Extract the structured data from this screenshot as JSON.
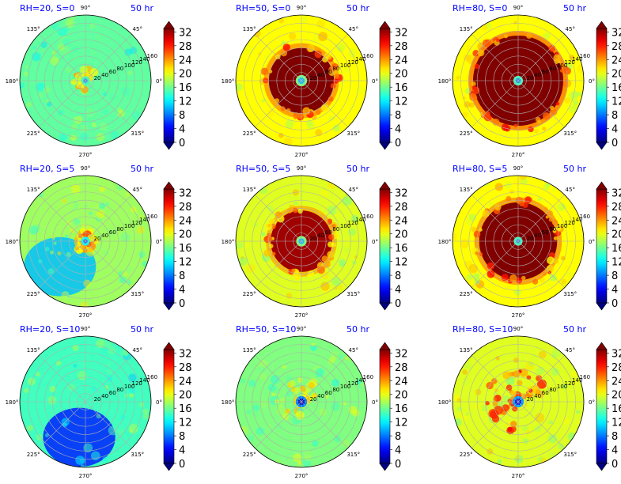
{
  "figure": {
    "panels": [
      {
        "title": "RH=20, S=0",
        "time": "50 hr"
      },
      {
        "title": "RH=50, S=0",
        "time": "50 hr"
      },
      {
        "title": "RH=80, S=0",
        "time": "50 hr"
      },
      {
        "title": "RH=20, S=5",
        "time": "50 hr"
      },
      {
        "title": "RH=50, S=5",
        "time": "50 hr"
      },
      {
        "title": "RH=80, S=5",
        "time": "50 hr"
      },
      {
        "title": "RH=20, S=10",
        "time": "50 hr"
      },
      {
        "title": "RH=50, S=10",
        "time": "50 hr"
      },
      {
        "title": "RH=80, S=10",
        "time": "50 hr"
      }
    ],
    "angle_labels": [
      "0°",
      "45°",
      "90°",
      "135°",
      "180°",
      "225°",
      "270°",
      "315°"
    ],
    "radial_labels": [
      "20",
      "40",
      "60",
      "80",
      "100",
      "120",
      "140",
      "160"
    ],
    "colorbar_ticks": [
      "0",
      "4",
      "8",
      "12",
      "16",
      "20",
      "24",
      "28",
      "32"
    ],
    "title_color": "#0000ff"
  },
  "chart_data": [
    {
      "type": "heatmap",
      "projection": "polar",
      "title": "RH=20, S=0",
      "annotation": "50 hr",
      "rlim": [
        0,
        160
      ],
      "theta_ticks_deg": [
        0,
        45,
        90,
        135,
        180,
        225,
        270,
        315
      ],
      "r_ticks": [
        20,
        40,
        60,
        80,
        100,
        120,
        140,
        160
      ],
      "colorbar": {
        "cmap": "jet",
        "range": [
          0,
          32
        ],
        "ticks": [
          0,
          4,
          8,
          12,
          16,
          20,
          24,
          28,
          32
        ],
        "extend": "both"
      },
      "field": {
        "background": 15,
        "core_radius": 5,
        "core_value": 8,
        "ring_inner": 7,
        "ring_outer": 30,
        "ring_value": 24,
        "ring_coverage": 0.35
      }
    },
    {
      "type": "heatmap",
      "projection": "polar",
      "title": "RH=50, S=0",
      "annotation": "50 hr",
      "rlim": [
        0,
        160
      ],
      "theta_ticks_deg": [
        0,
        45,
        90,
        135,
        180,
        225,
        270,
        315
      ],
      "r_ticks": [
        20,
        40,
        60,
        80,
        100,
        120,
        140,
        160
      ],
      "colorbar": {
        "cmap": "jet",
        "range": [
          0,
          32
        ],
        "ticks": [
          0,
          4,
          8,
          12,
          16,
          20,
          24,
          28,
          32
        ],
        "extend": "both"
      },
      "field": {
        "background": 20,
        "core_radius": 8,
        "core_value": 10,
        "ring_inner": 10,
        "ring_outer": 80,
        "ring_value": 32,
        "ring_coverage": 1.0
      }
    },
    {
      "type": "heatmap",
      "projection": "polar",
      "title": "RH=80, S=0",
      "annotation": "50 hr",
      "rlim": [
        0,
        160
      ],
      "theta_ticks_deg": [
        0,
        45,
        90,
        135,
        180,
        225,
        270,
        315
      ],
      "r_ticks": [
        20,
        40,
        60,
        80,
        100,
        120,
        140,
        160
      ],
      "colorbar": {
        "cmap": "jet",
        "range": [
          0,
          32
        ],
        "ticks": [
          0,
          4,
          8,
          12,
          16,
          20,
          24,
          28,
          32
        ],
        "extend": "both"
      },
      "field": {
        "background": 20,
        "core_radius": 6,
        "core_value": 8,
        "ring_inner": 8,
        "ring_outer": 110,
        "ring_value": 33,
        "ring_coverage": 1.0
      }
    },
    {
      "type": "heatmap",
      "projection": "polar",
      "title": "RH=20, S=5",
      "annotation": "50 hr",
      "rlim": [
        0,
        160
      ],
      "theta_ticks_deg": [
        0,
        45,
        90,
        135,
        180,
        225,
        270,
        315
      ],
      "r_ticks": [
        20,
        40,
        60,
        80,
        100,
        120,
        140,
        160
      ],
      "colorbar": {
        "cmap": "jet",
        "range": [
          0,
          32
        ],
        "ticks": [
          0,
          4,
          8,
          12,
          16,
          20,
          24,
          28,
          32
        ],
        "extend": "both"
      },
      "field": {
        "background": 17,
        "core_radius": 5,
        "core_value": 6,
        "ring_inner": 6,
        "ring_outer": 16,
        "ring_value": 30,
        "ring_coverage": 1.0,
        "low_sector": {
          "center_deg": 225,
          "value": 10
        }
      }
    },
    {
      "type": "heatmap",
      "projection": "polar",
      "title": "RH=50, S=5",
      "annotation": "50 hr",
      "rlim": [
        0,
        160
      ],
      "theta_ticks_deg": [
        0,
        45,
        90,
        135,
        180,
        225,
        270,
        315
      ],
      "r_ticks": [
        20,
        40,
        60,
        80,
        100,
        120,
        140,
        160
      ],
      "colorbar": {
        "cmap": "jet",
        "range": [
          0,
          32
        ],
        "ticks": [
          0,
          4,
          8,
          12,
          16,
          20,
          24,
          28,
          32
        ],
        "extend": "both"
      },
      "field": {
        "background": 19,
        "core_radius": 7,
        "core_value": 10,
        "ring_inner": 9,
        "ring_outer": 75,
        "ring_value": 31,
        "ring_coverage": 1.0
      }
    },
    {
      "type": "heatmap",
      "projection": "polar",
      "title": "RH=80, S=5",
      "annotation": "50 hr",
      "rlim": [
        0,
        160
      ],
      "theta_ticks_deg": [
        0,
        45,
        90,
        135,
        180,
        225,
        270,
        315
      ],
      "r_ticks": [
        20,
        40,
        60,
        80,
        100,
        120,
        140,
        160
      ],
      "colorbar": {
        "cmap": "jet",
        "range": [
          0,
          32
        ],
        "ticks": [
          0,
          4,
          8,
          12,
          16,
          20,
          24,
          28,
          32
        ],
        "extend": "both"
      },
      "field": {
        "background": 20,
        "core_radius": 5,
        "core_value": 8,
        "ring_inner": 7,
        "ring_outer": 95,
        "ring_value": 32,
        "ring_coverage": 1.0
      }
    },
    {
      "type": "heatmap",
      "projection": "polar",
      "title": "RH=20, S=10",
      "annotation": "50 hr",
      "rlim": [
        0,
        160
      ],
      "theta_ticks_deg": [
        0,
        45,
        90,
        135,
        180,
        225,
        270,
        315
      ],
      "r_ticks": [
        20,
        40,
        60,
        80,
        100,
        120,
        140,
        160
      ],
      "colorbar": {
        "cmap": "jet",
        "range": [
          0,
          32
        ],
        "ticks": [
          0,
          4,
          8,
          12,
          16,
          20,
          24,
          28,
          32
        ],
        "extend": "both"
      },
      "field": {
        "background": 14,
        "core_radius": 0,
        "core_value": 14,
        "ring_inner": 0,
        "ring_outer": 0,
        "ring_value": 14,
        "ring_coverage": 0,
        "low_sector": {
          "center_deg": 260,
          "value": 5
        }
      }
    },
    {
      "type": "heatmap",
      "projection": "polar",
      "title": "RH=50, S=10",
      "annotation": "50 hr",
      "rlim": [
        0,
        160
      ],
      "theta_ticks_deg": [
        0,
        45,
        90,
        135,
        180,
        225,
        270,
        315
      ],
      "r_ticks": [
        20,
        40,
        60,
        80,
        100,
        120,
        140,
        160
      ],
      "colorbar": {
        "cmap": "jet",
        "range": [
          0,
          32
        ],
        "ticks": [
          0,
          4,
          8,
          12,
          16,
          20,
          24,
          28,
          32
        ],
        "extend": "both"
      },
      "field": {
        "background": 16,
        "core_radius": 8,
        "core_value": 2,
        "ring_inner": 10,
        "ring_outer": 60,
        "ring_value": 22,
        "ring_coverage": 0.5
      }
    },
    {
      "type": "heatmap",
      "projection": "polar",
      "title": "RH=80, S=10",
      "annotation": "50 hr",
      "rlim": [
        0,
        160
      ],
      "theta_ticks_deg": [
        0,
        45,
        90,
        135,
        180,
        225,
        270,
        315
      ],
      "r_ticks": [
        20,
        40,
        60,
        80,
        100,
        120,
        140,
        160
      ],
      "colorbar": {
        "cmap": "jet",
        "range": [
          0,
          32
        ],
        "ticks": [
          0,
          4,
          8,
          12,
          16,
          20,
          24,
          28,
          32
        ],
        "extend": "both"
      },
      "field": {
        "background": 19,
        "core_radius": 8,
        "core_value": 3,
        "ring_inner": 10,
        "ring_outer": 80,
        "ring_value": 29,
        "ring_coverage": 0.7
      }
    }
  ]
}
